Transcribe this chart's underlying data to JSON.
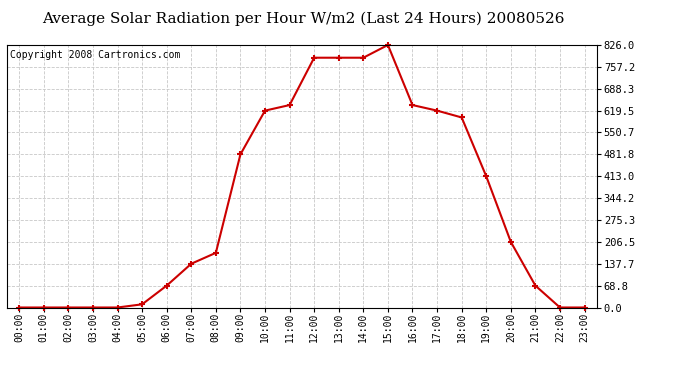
{
  "title": "Average Solar Radiation per Hour W/m2 (Last 24 Hours) 20080526",
  "copyright": "Copyright 2008 Cartronics.com",
  "hours": [
    "00:00",
    "01:00",
    "02:00",
    "03:00",
    "04:00",
    "05:00",
    "06:00",
    "07:00",
    "08:00",
    "09:00",
    "10:00",
    "11:00",
    "12:00",
    "13:00",
    "14:00",
    "15:00",
    "16:00",
    "17:00",
    "18:00",
    "19:00",
    "20:00",
    "21:00",
    "22:00",
    "23:00"
  ],
  "values": [
    0.0,
    0.0,
    0.0,
    0.0,
    0.0,
    10.0,
    68.8,
    137.7,
    172.0,
    481.8,
    619.5,
    637.0,
    786.0,
    786.0,
    786.0,
    826.0,
    637.0,
    619.5,
    598.0,
    413.0,
    206.5,
    68.8,
    0.0,
    0.0
  ],
  "line_color": "#cc0000",
  "marker": "+",
  "marker_size": 5,
  "marker_linewidth": 1.5,
  "line_width": 1.5,
  "bg_color": "#ffffff",
  "grid_color": "#c8c8c8",
  "grid_linestyle": "--",
  "ylim": [
    0.0,
    826.0
  ],
  "yticks": [
    0.0,
    68.8,
    137.7,
    206.5,
    275.3,
    344.2,
    413.0,
    481.8,
    550.7,
    619.5,
    688.3,
    757.2,
    826.0
  ],
  "title_fontsize": 11,
  "copyright_fontsize": 7,
  "xtick_fontsize": 7,
  "ytick_fontsize": 7.5
}
